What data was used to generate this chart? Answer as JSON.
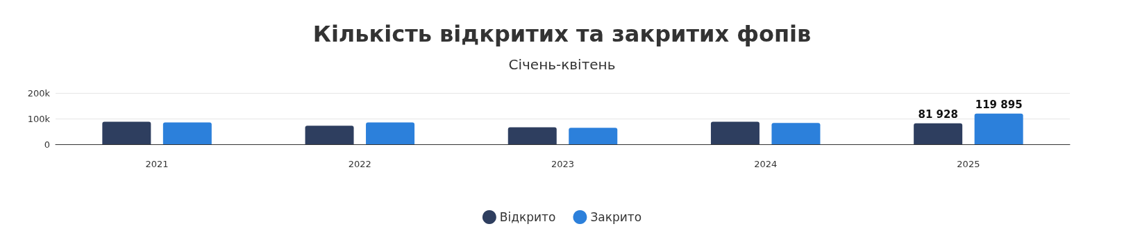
{
  "chart_data": {
    "type": "bar",
    "title": "Кількість відкритих та закритих фопів",
    "subtitle": "Січень-квітень",
    "categories": [
      "2021",
      "2022",
      "2023",
      "2024",
      "2025"
    ],
    "series": [
      {
        "name": "Відкрито",
        "color": "#2e3e5f",
        "values": [
          88000,
          72000,
          66000,
          88000,
          81928
        ],
        "value_labels": [
          null,
          null,
          null,
          null,
          "81 928"
        ]
      },
      {
        "name": "Закрито",
        "color": "#2c80db",
        "values": [
          85000,
          85000,
          64000,
          83000,
          119895
        ],
        "value_labels": [
          null,
          null,
          null,
          null,
          "119 895"
        ]
      }
    ],
    "ylim": [
      0,
      200000
    ],
    "yticks": [
      {
        "value": 0,
        "label": "0"
      },
      {
        "value": 100000,
        "label": "100k"
      },
      {
        "value": 200000,
        "label": "200k"
      }
    ],
    "grid": "y",
    "legend": "bottom"
  }
}
